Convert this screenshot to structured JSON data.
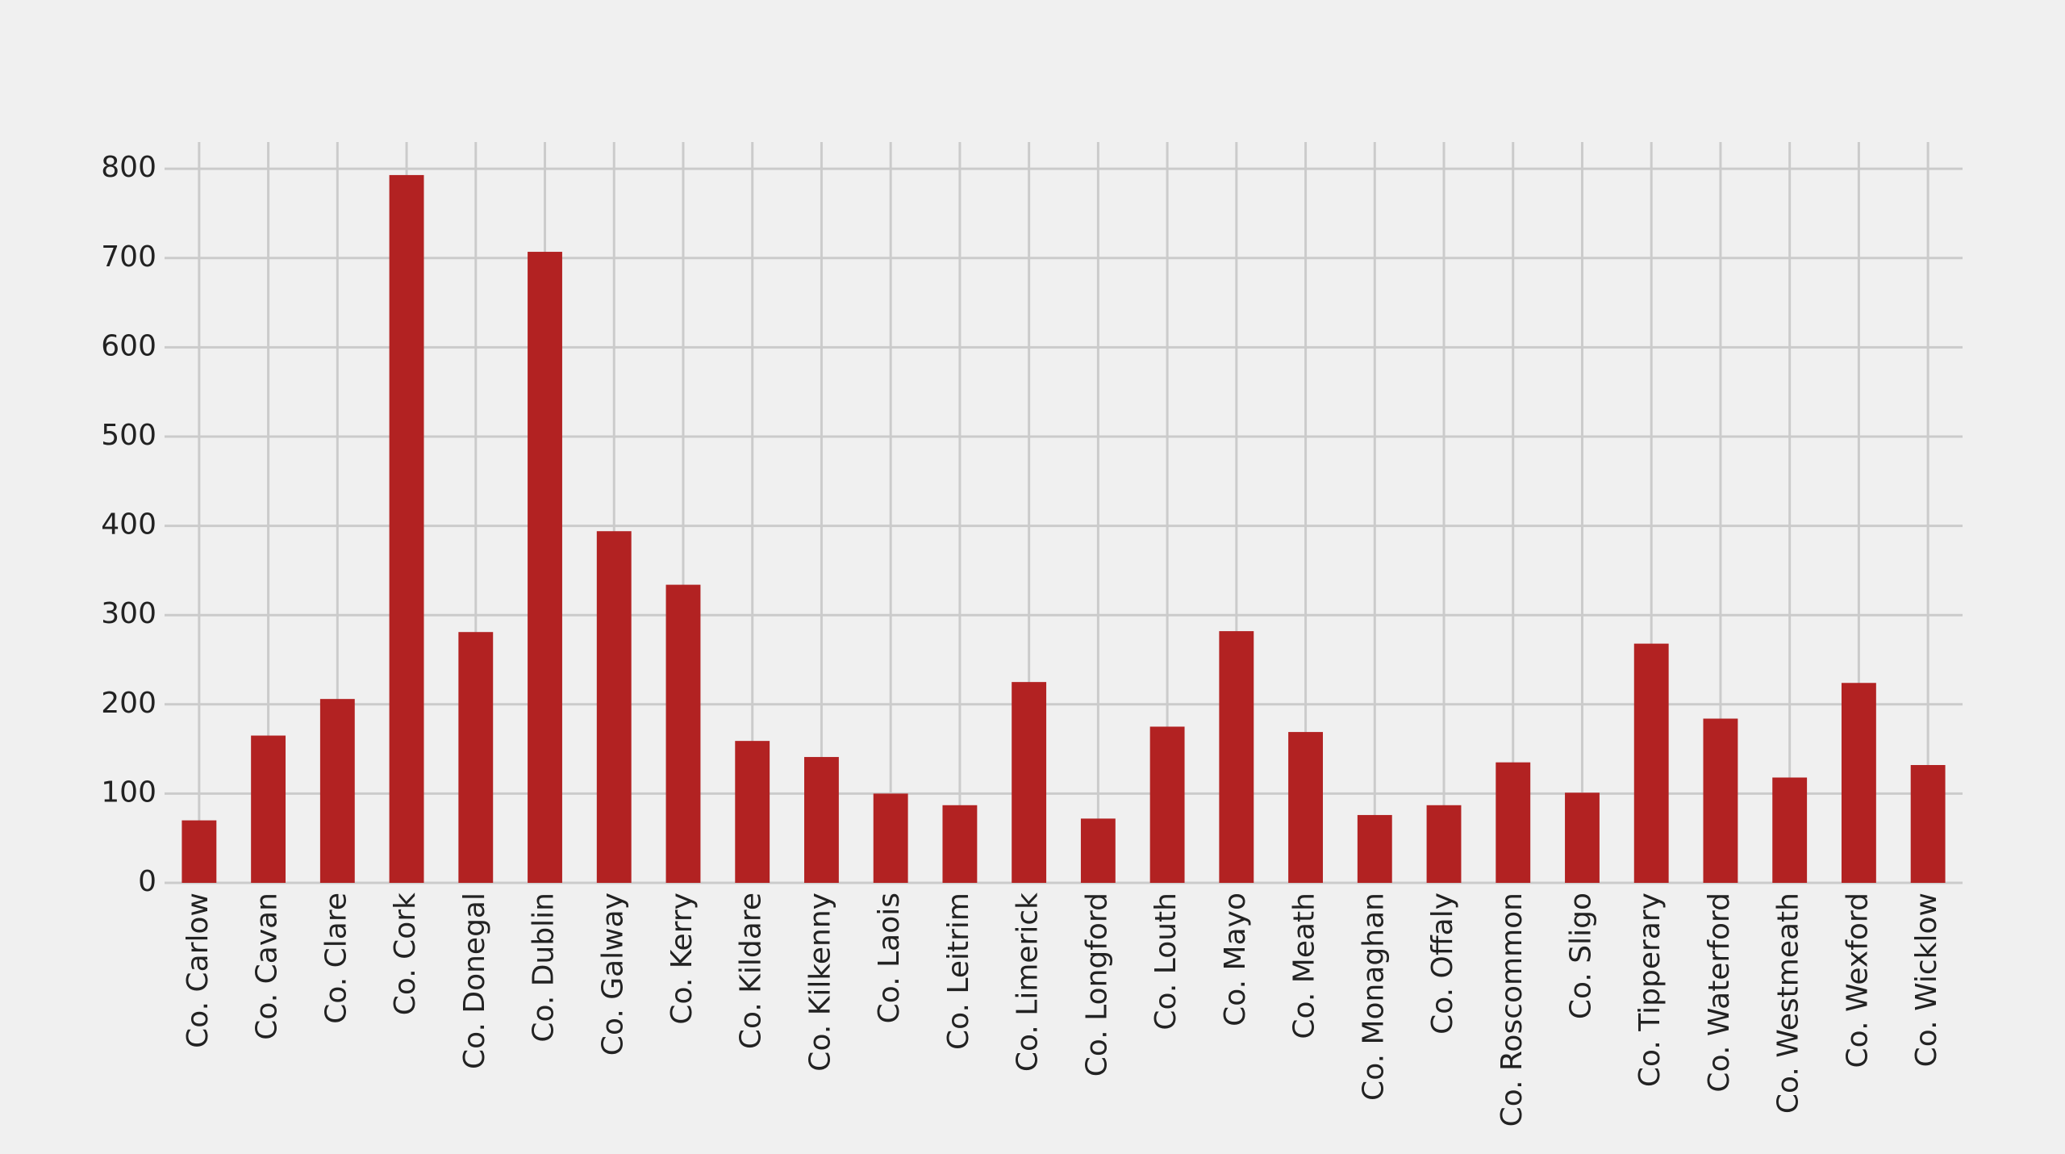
{
  "chart_data": {
    "type": "bar",
    "categories": [
      "Co. Carlow",
      "Co. Cavan",
      "Co. Clare",
      "Co. Cork",
      "Co. Donegal",
      "Co. Dublin",
      "Co. Galway",
      "Co. Kerry",
      "Co. Kildare",
      "Co. Kilkenny",
      "Co. Laois",
      "Co. Leitrim",
      "Co. Limerick",
      "Co. Longford",
      "Co. Louth",
      "Co. Mayo",
      "Co. Meath",
      "Co. Monaghan",
      "Co. Offaly",
      "Co. Roscommon",
      "Co. Sligo",
      "Co. Tipperary",
      "Co. Waterford",
      "Co. Westmeath",
      "Co. Wexford",
      "Co. Wicklow"
    ],
    "values": [
      70,
      165,
      206,
      793,
      281,
      707,
      394,
      334,
      159,
      141,
      100,
      87,
      225,
      72,
      175,
      282,
      169,
      76,
      87,
      135,
      101,
      268,
      184,
      118,
      224,
      132
    ],
    "color": "#b22222",
    "ylim": [
      0,
      830
    ],
    "yticks": [
      0,
      100,
      200,
      300,
      400,
      500,
      600,
      700,
      800
    ],
    "grid": true
  }
}
